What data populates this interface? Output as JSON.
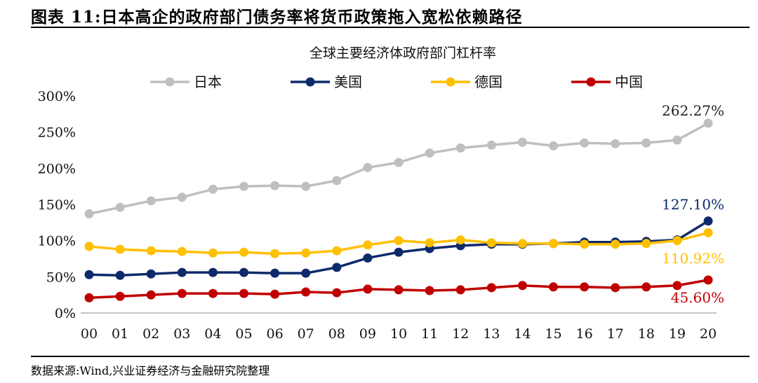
{
  "figure": {
    "title": "图表 11:日本高企的政府部门债务率将货币政策拖入宽松依赖路径",
    "source": "数据来源:Wind,兴业证券经济与金融研究院整理"
  },
  "chart_data": {
    "type": "line",
    "title": "全球主要经济体政府部门杠杆率",
    "xlabel": "",
    "ylabel": "",
    "categories": [
      "00",
      "01",
      "02",
      "03",
      "04",
      "05",
      "06",
      "07",
      "08",
      "09",
      "10",
      "11",
      "12",
      "13",
      "14",
      "15",
      "16",
      "17",
      "18",
      "19",
      "20"
    ],
    "ylim": [
      0,
      300
    ],
    "yticks": [
      0,
      50,
      100,
      150,
      200,
      250,
      300
    ],
    "ytick_labels": [
      "0%",
      "50%",
      "100%",
      "150%",
      "200%",
      "250%",
      "300%"
    ],
    "grid": false,
    "legend_position": "top",
    "series": [
      {
        "name": "日本",
        "color": "#BFBFBF",
        "values": [
          137,
          146,
          155,
          160,
          171,
          175,
          176,
          175,
          183,
          201,
          208,
          221,
          228,
          232,
          236,
          231,
          235,
          234,
          235,
          239,
          262.27
        ],
        "end_label": "262.27%",
        "end_label_color": "#222222"
      },
      {
        "name": "美国",
        "color": "#0E2A6B",
        "values": [
          53,
          52,
          54,
          56,
          56,
          56,
          55,
          55,
          63,
          76,
          84,
          89,
          93,
          95,
          95,
          96,
          98,
          98,
          99,
          101,
          127.1
        ],
        "end_label": "127.10%",
        "end_label_color": "#0E2A6B"
      },
      {
        "name": "德国",
        "color": "#FFC000",
        "values": [
          92,
          88,
          86,
          85,
          83,
          84,
          82,
          83,
          86,
          94,
          100,
          97,
          101,
          97,
          96,
          96,
          95,
          95,
          96,
          100,
          110.92
        ],
        "end_label": "110.92%",
        "end_label_color": "#FFC000"
      },
      {
        "name": "中国",
        "color": "#C00000",
        "values": [
          21,
          23,
          25,
          27,
          27,
          27,
          26,
          29,
          28,
          33,
          32,
          31,
          32,
          35,
          38,
          36,
          36,
          35,
          36,
          38,
          45.6
        ],
        "end_label": "45.60%",
        "end_label_color": "#C00000"
      }
    ]
  }
}
